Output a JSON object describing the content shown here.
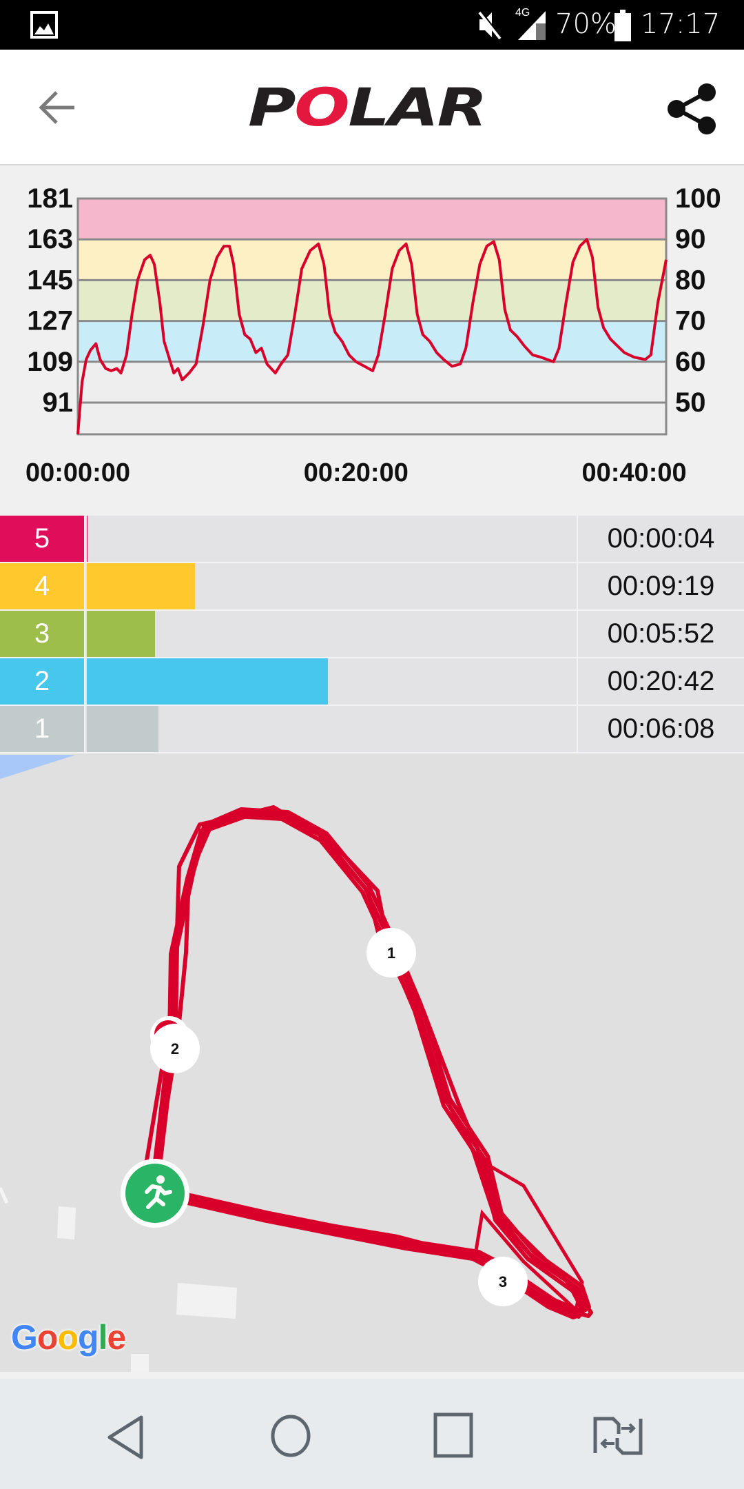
{
  "status_bar": {
    "battery": "70%",
    "time": "17:17",
    "network": "4G",
    "icons": [
      "image-icon",
      "mute-icon",
      "signal-icon",
      "battery-icon"
    ]
  },
  "header": {
    "logo_text": "POLAR",
    "icons": [
      "back-arrow-icon",
      "share-icon"
    ]
  },
  "chart_data": {
    "type": "line",
    "title": "",
    "xlabel": "",
    "ylabel": "",
    "x_tick_labels": [
      "00:00:00",
      "00:20:00",
      "00:40:00"
    ],
    "x_ticks_minutes": [
      0,
      20,
      40
    ],
    "xlim_minutes": [
      0,
      42.3
    ],
    "y_left_ticks": [
      "181",
      "163",
      "145",
      "127",
      "109",
      "91"
    ],
    "y_left_values": [
      181,
      163,
      145,
      127,
      109,
      91
    ],
    "y_right_ticks": [
      "100",
      "90",
      "80",
      "70",
      "60",
      "50"
    ],
    "ylim": [
      77,
      181
    ],
    "zone_bands": [
      {
        "zone": 5,
        "from": 163,
        "to": 181,
        "color": "#f4b7cb"
      },
      {
        "zone": 4,
        "from": 145,
        "to": 163,
        "color": "#fdf0c4"
      },
      {
        "zone": 3,
        "from": 127,
        "to": 145,
        "color": "#e4ebc9"
      },
      {
        "zone": 2,
        "from": 109,
        "to": 127,
        "color": "#c8edf9"
      },
      {
        "zone": 1,
        "from": 77,
        "to": 109,
        "color": "#eeeeee"
      }
    ],
    "line_color": "#d8002a",
    "series": [
      {
        "points": [
          [
            0,
            77
          ],
          [
            0.3,
            100
          ],
          [
            0.6,
            110
          ],
          [
            0.9,
            114
          ],
          [
            1.3,
            117
          ],
          [
            1.6,
            110
          ],
          [
            2.0,
            106
          ],
          [
            2.4,
            105
          ],
          [
            2.8,
            106
          ],
          [
            3.1,
            104
          ],
          [
            3.5,
            112
          ],
          [
            3.9,
            130
          ],
          [
            4.3,
            145
          ],
          [
            4.8,
            154
          ],
          [
            5.2,
            156
          ],
          [
            5.5,
            152
          ],
          [
            5.9,
            135
          ],
          [
            6.2,
            118
          ],
          [
            6.5,
            112
          ],
          [
            6.9,
            104
          ],
          [
            7.2,
            106
          ],
          [
            7.5,
            101
          ],
          [
            8.0,
            104
          ],
          [
            8.5,
            108
          ],
          [
            9.0,
            125
          ],
          [
            9.5,
            145
          ],
          [
            10.0,
            155
          ],
          [
            10.5,
            160
          ],
          [
            10.9,
            160
          ],
          [
            11.2,
            152
          ],
          [
            11.6,
            130
          ],
          [
            12.0,
            121
          ],
          [
            12.4,
            119
          ],
          [
            12.8,
            113
          ],
          [
            13.2,
            115
          ],
          [
            13.6,
            108
          ],
          [
            14.2,
            104
          ],
          [
            14.6,
            108
          ],
          [
            15.1,
            112
          ],
          [
            15.6,
            130
          ],
          [
            16.1,
            150
          ],
          [
            16.7,
            158
          ],
          [
            17.3,
            161
          ],
          [
            17.7,
            152
          ],
          [
            18.1,
            130
          ],
          [
            18.5,
            122
          ],
          [
            19.0,
            118
          ],
          [
            19.5,
            112
          ],
          [
            20.0,
            109
          ],
          [
            20.6,
            107
          ],
          [
            21.2,
            105
          ],
          [
            21.6,
            112
          ],
          [
            22.1,
            130
          ],
          [
            22.6,
            150
          ],
          [
            23.1,
            158
          ],
          [
            23.6,
            161
          ],
          [
            24.0,
            152
          ],
          [
            24.4,
            130
          ],
          [
            24.8,
            121
          ],
          [
            25.3,
            118
          ],
          [
            25.8,
            113
          ],
          [
            26.3,
            110
          ],
          [
            26.9,
            107
          ],
          [
            27.5,
            108
          ],
          [
            27.9,
            115
          ],
          [
            28.4,
            135
          ],
          [
            28.9,
            152
          ],
          [
            29.4,
            160
          ],
          [
            29.9,
            162
          ],
          [
            30.3,
            154
          ],
          [
            30.7,
            132
          ],
          [
            31.1,
            123
          ],
          [
            31.6,
            120
          ],
          [
            32.1,
            116
          ],
          [
            32.7,
            112
          ],
          [
            33.3,
            111
          ],
          [
            34.2,
            109
          ],
          [
            34.6,
            115
          ],
          [
            35.1,
            135
          ],
          [
            35.6,
            153
          ],
          [
            36.1,
            160
          ],
          [
            36.6,
            163
          ],
          [
            37.0,
            155
          ],
          [
            37.4,
            133
          ],
          [
            37.8,
            124
          ],
          [
            38.3,
            119
          ],
          [
            38.8,
            116
          ],
          [
            39.3,
            113
          ],
          [
            40.0,
            111
          ],
          [
            40.8,
            110
          ],
          [
            41.2,
            112
          ],
          [
            41.7,
            135
          ],
          [
            42.3,
            154
          ]
        ]
      }
    ]
  },
  "zones": [
    {
      "zone": "5",
      "time": "00:00:04",
      "seconds": 4,
      "color": "#e00d5a"
    },
    {
      "zone": "4",
      "time": "00:09:19",
      "seconds": 559,
      "color": "#ffc82c"
    },
    {
      "zone": "3",
      "time": "00:05:52",
      "seconds": 352,
      "color": "#9dbe4a"
    },
    {
      "zone": "2",
      "time": "00:20:42",
      "seconds": 1242,
      "color": "#48c7ec"
    },
    {
      "zone": "1",
      "time": "00:06:08",
      "seconds": 368,
      "color": "#c2cbcb"
    }
  ],
  "map": {
    "attribution": "Google",
    "route_color": "#d8002a",
    "lap_markers": [
      "1",
      "2",
      "3"
    ],
    "start_icon": "running-person-icon"
  },
  "nav_bar": {
    "icons": [
      "back-triangle-icon",
      "home-circle-icon",
      "recents-square-icon",
      "screen-swap-icon"
    ]
  }
}
